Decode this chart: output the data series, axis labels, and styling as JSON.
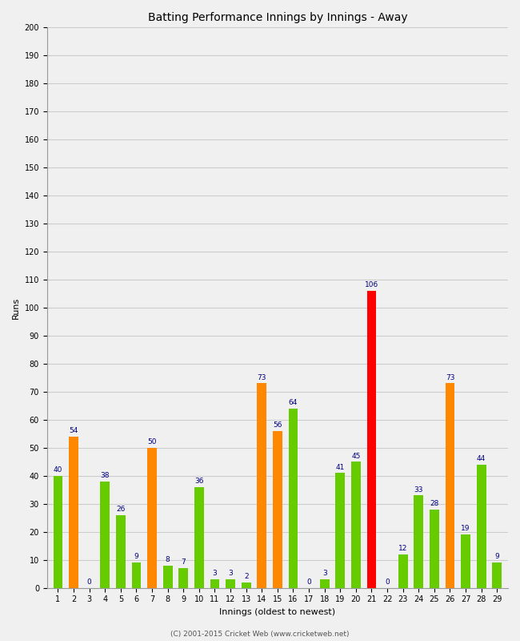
{
  "title": "Batting Performance Innings by Innings - Away",
  "xlabel": "Innings (oldest to newest)",
  "ylabel": "Runs",
  "innings": [
    1,
    2,
    3,
    4,
    5,
    6,
    7,
    8,
    9,
    10,
    11,
    12,
    13,
    14,
    15,
    16,
    17,
    18,
    19,
    20,
    21,
    22,
    23,
    24,
    25,
    26,
    27,
    28,
    29
  ],
  "values": [
    40,
    54,
    0,
    38,
    26,
    9,
    50,
    8,
    7,
    36,
    3,
    3,
    2,
    73,
    56,
    64,
    0,
    3,
    41,
    45,
    106,
    0,
    12,
    33,
    28,
    73,
    19,
    44,
    9
  ],
  "colors": [
    "#66cc00",
    "#ff8800",
    "#66cc00",
    "#66cc00",
    "#66cc00",
    "#66cc00",
    "#ff8800",
    "#66cc00",
    "#66cc00",
    "#66cc00",
    "#66cc00",
    "#66cc00",
    "#66cc00",
    "#ff8800",
    "#ff8800",
    "#66cc00",
    "#66cc00",
    "#66cc00",
    "#66cc00",
    "#66cc00",
    "#ff0000",
    "#66cc00",
    "#66cc00",
    "#66cc00",
    "#66cc00",
    "#ff8800",
    "#66cc00",
    "#66cc00",
    "#66cc00"
  ],
  "ylim": [
    0,
    200
  ],
  "yticks": [
    0,
    10,
    20,
    30,
    40,
    50,
    60,
    70,
    80,
    90,
    100,
    110,
    120,
    130,
    140,
    150,
    160,
    170,
    180,
    190,
    200
  ],
  "background_color": "#f0f0f0",
  "grid_color": "#cccccc",
  "label_color": "#000080",
  "label_fontsize": 6.5,
  "title_fontsize": 10,
  "axis_label_fontsize": 8,
  "tick_fontsize": 7,
  "copyright": "(C) 2001-2015 Cricket Web (www.cricketweb.net)"
}
